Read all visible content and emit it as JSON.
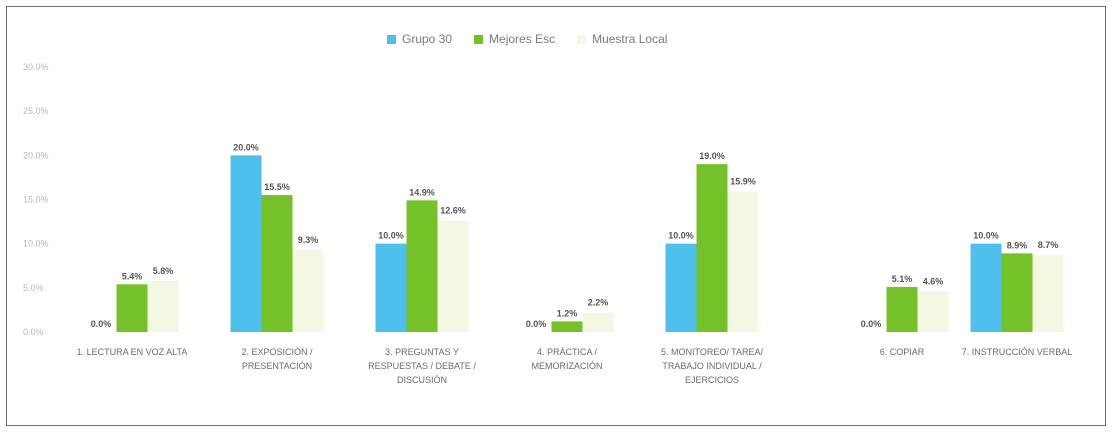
{
  "chart_data": {
    "type": "bar",
    "title": "",
    "xlabel": "",
    "ylabel": "",
    "ylim": [
      0,
      30
    ],
    "yticks": [
      "0.0%",
      "5.0%",
      "10.0%",
      "15.0%",
      "20.0%",
      "25.0%",
      "30.0%"
    ],
    "grid": false,
    "legend_position": "top-center",
    "categories": [
      "1. LECTURA EN VOZ ALTA",
      "2. EXPOSICIÓN / PRESENTACIÓN",
      "3. PREGUNTAS Y RESPUESTAS / DEBATE / DISCUSIÓN",
      "4. PRÁCTICA / MEMORIZACIÓN",
      "5. MONITOREO/ TAREA/ TRABAJO INDIVIDUAL / EJERCICIOS",
      "6. COPIAR",
      "7. INSTRUCCIÓN VERBAL"
    ],
    "series": [
      {
        "name": "Grupo 30",
        "color": "#4fc0ee",
        "values": [
          0.0,
          20.0,
          10.0,
          0.0,
          10.0,
          0.0,
          10.0
        ],
        "labels": [
          "0.0%",
          "20.0%",
          "10.0%",
          "0.0%",
          "10.0%",
          "0.0%",
          "10.0%"
        ]
      },
      {
        "name": "Mejores Esc",
        "color": "#74c228",
        "values": [
          5.4,
          15.5,
          14.9,
          1.2,
          19.0,
          5.1,
          8.9
        ],
        "labels": [
          "5.4%",
          "15.5%",
          "14.9%",
          "1.2%",
          "19.0%",
          "5.1%",
          "8.9%"
        ]
      },
      {
        "name": "Muestra Local",
        "color": "#f2f8e2",
        "values": [
          5.8,
          9.3,
          12.6,
          2.2,
          15.9,
          4.6,
          8.7
        ],
        "labels": [
          "5.8%",
          "9.3%",
          "12.6%",
          "2.2%",
          "15.9%",
          "4.6%",
          "8.7%"
        ]
      }
    ]
  }
}
